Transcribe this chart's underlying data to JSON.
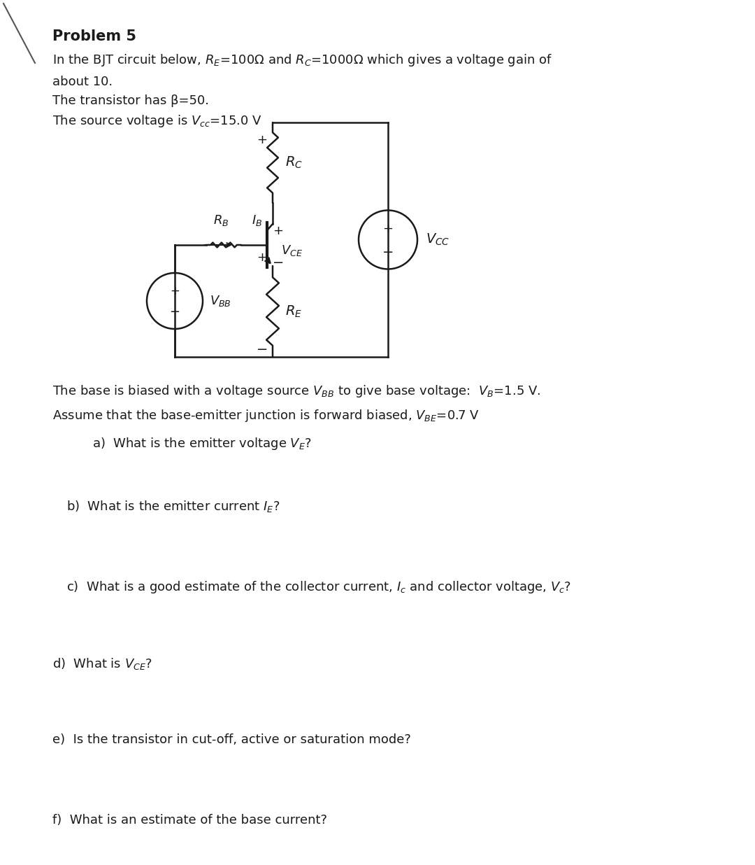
{
  "title": "Problem 5",
  "intro_line1": "In the BJT circuit below, $R_E$=100Ω and $R_C$=1000Ω which gives a voltage gain of",
  "intro_line2": "about 10.",
  "intro_line3": "The transistor has β=50.",
  "intro_line4": "The source voltage is $V_{cc}$=15.0 V",
  "bias_text1": "The base is biased with a voltage source $V_{BB}$ to give base voltage:  $V_B$=1.5 V.",
  "bias_text2": "Assume that the base-emitter junction is forward biased, $V_{BE}$=0.7 V",
  "qa": "   a)  What is the emitter voltage $V_E$?",
  "qb": "b)  What is the emitter current $I_E$?",
  "qc": "c)  What is a good estimate of the collector current, $I_c$ and collector voltage, $V_c$?",
  "qd": "d)  What is $V_{CE}$?",
  "qe": "e)  Is the transistor in cut-off, active or saturation mode?",
  "qf": "f)  What is an estimate of the base current?",
  "bg_color": "#ffffff",
  "text_color": "#1a1a1a"
}
